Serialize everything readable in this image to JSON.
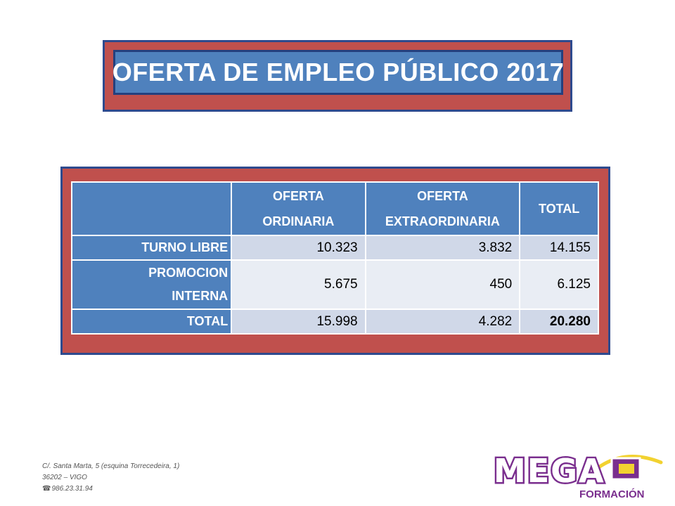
{
  "title": "OFERTA DE EMPLEO PÚBLICO 2017",
  "table": {
    "headers": [
      "",
      "OFERTA ORDINARIA",
      "OFERTA EXTRAORDINARIA",
      "TOTAL"
    ],
    "header_lines": [
      [
        ""
      ],
      [
        "OFERTA",
        "ORDINARIA"
      ],
      [
        "OFERTA",
        "EXTRAORDINARIA"
      ],
      [
        "TOTAL"
      ]
    ],
    "rows": [
      {
        "label_lines": [
          "TURNO LIBRE"
        ],
        "values": [
          "10.323",
          "3.832",
          "14.155"
        ]
      },
      {
        "label_lines": [
          "PROMOCION",
          "INTERNA"
        ],
        "values": [
          "5.675",
          "450",
          "6.125"
        ]
      },
      {
        "label_lines": [
          "TOTAL"
        ],
        "values": [
          "15.998",
          "4.282",
          "20.280"
        ]
      }
    ]
  },
  "footer": {
    "address_line1": "C/. Santa Marta, 5 (esquina Torrecedeira, 1)",
    "address_line2": "36202 – VIGO",
    "phone": "986.23.31.94",
    "phone_icon": "telephone-icon"
  },
  "logo": {
    "text_main": "MEGA",
    "text_sub": "FORMACIÓN"
  },
  "colors": {
    "frame_red": "#c0504d",
    "header_blue": "#4f81bd",
    "row_dark": "#d0d8e8",
    "row_light": "#e9edf4",
    "logo_purple": "#7a2e8e",
    "logo_yellow": "#f2d230"
  }
}
